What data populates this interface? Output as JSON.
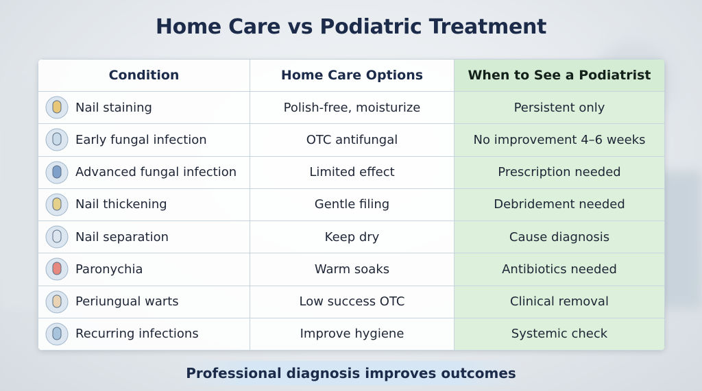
{
  "title": "Home Care vs Podiatric Treatment",
  "table": {
    "headers": [
      "Condition",
      "Home Care Options",
      "When to See a Podiatrist"
    ],
    "rows": [
      [
        "Nail staining",
        "Polish-free, moisturize",
        "Persistent only"
      ],
      [
        "Early fungal infection",
        "OTC antifungal",
        "No improvement 4–6 weeks"
      ],
      [
        "Advanced fungal infection",
        "Limited effect",
        "Prescription needed"
      ],
      [
        "Nail thickening",
        "Gentle filing",
        "Debridement needed"
      ],
      [
        "Nail separation",
        "Keep dry",
        "Cause diagnosis"
      ],
      [
        "Paronychia",
        "Warm soaks",
        "Antibiotics needed"
      ],
      [
        "Periungual warts",
        "Low success OTC",
        "Clinical removal"
      ],
      [
        "Recurring infections",
        "Improve hygiene",
        "Systemic check"
      ]
    ]
  },
  "footer": "Professional diagnosis improves outcomes"
}
